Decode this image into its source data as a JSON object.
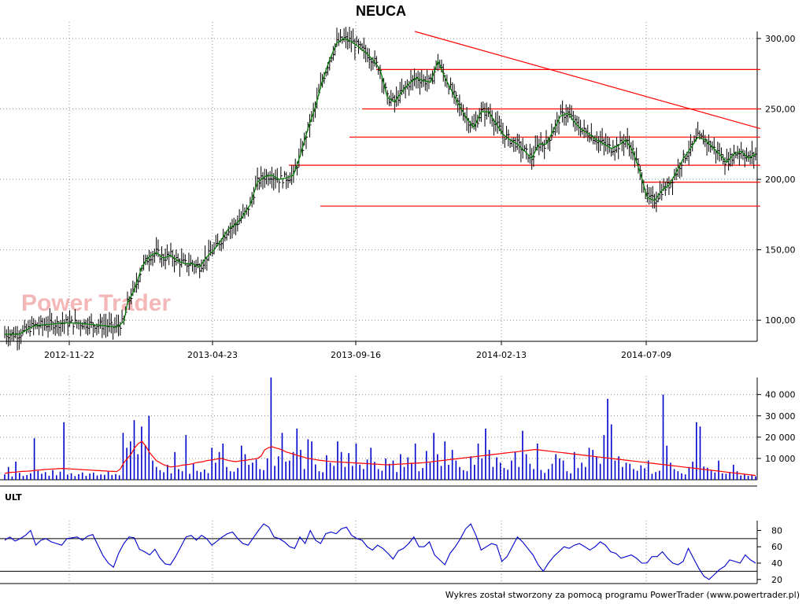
{
  "title": "NEUCA",
  "watermark": "Power Trader",
  "footer": "Wykres został stworzony za pomocą programu PowerTrader (www.powertrader.pl)",
  "indicator_label": "ULT",
  "colors": {
    "price_bar": "#000000",
    "price_line": "#008000",
    "trendlines": "#ff0000",
    "volume_bars": "#0000cc",
    "volume_ma": "#ff0000",
    "ult_line": "#0000cc",
    "grid": "#888888"
  },
  "chart_data": [
    {
      "type": "ohlc",
      "title": "NEUCA",
      "x": [
        "2012-11-22",
        "2013-04-23",
        "2013-09-16",
        "2014-02-13",
        "2014-07-09"
      ],
      "ylim": [
        85,
        305
      ],
      "y_ticks": [
        "100,00",
        "150,00",
        "200,00",
        "250,00",
        "300,00"
      ],
      "grid": true,
      "series": [
        {
          "values": [
            [
              0,
              90
            ],
            [
              4,
              90
            ],
            [
              8,
              96
            ],
            [
              12,
              97
            ],
            [
              16,
              98
            ],
            [
              20,
              98
            ],
            [
              24,
              97
            ],
            [
              28,
              96
            ],
            [
              31,
              95
            ],
            [
              33,
              99
            ],
            [
              34,
              112
            ],
            [
              36,
              122
            ],
            [
              38,
              138
            ],
            [
              40,
              145
            ],
            [
              42,
              148
            ],
            [
              44,
              144
            ],
            [
              46,
              146
            ],
            [
              48,
              142
            ],
            [
              50,
              140
            ],
            [
              52,
              140
            ],
            [
              54,
              138
            ],
            [
              56,
              145
            ],
            [
              58,
              150
            ],
            [
              60,
              157
            ],
            [
              62,
              165
            ],
            [
              64,
              168
            ],
            [
              66,
              174
            ],
            [
              68,
              182
            ],
            [
              70,
              198
            ],
            [
              72,
              202
            ],
            [
              74,
              203
            ],
            [
              76,
              200
            ],
            [
              78,
              201
            ],
            [
              80,
              203
            ],
            [
              82,
              218
            ],
            [
              84,
              236
            ],
            [
              86,
              251
            ],
            [
              88,
              270
            ],
            [
              90,
              285
            ],
            [
              92,
              297
            ],
            [
              94,
              300
            ],
            [
              96,
              298
            ],
            [
              98,
              294
            ],
            [
              100,
              290
            ],
            [
              102,
              285
            ],
            [
              104,
              278
            ],
            [
              106,
              258
            ],
            [
              108,
              255
            ],
            [
              110,
              262
            ],
            [
              112,
              268
            ],
            [
              114,
              272
            ],
            [
              116,
              270
            ],
            [
              118,
              269
            ],
            [
              120,
              284
            ],
            [
              122,
              272
            ],
            [
              124,
              262
            ],
            [
              126,
              252
            ],
            [
              128,
              243
            ],
            [
              130,
              237
            ],
            [
              132,
              248
            ],
            [
              134,
              248
            ],
            [
              136,
              240
            ],
            [
              138,
              232
            ],
            [
              140,
              228
            ],
            [
              142,
              225
            ],
            [
              144,
              220
            ],
            [
              146,
              215
            ],
            [
              148,
              225
            ],
            [
              150,
              225
            ],
            [
              152,
              235
            ],
            [
              154,
              245
            ],
            [
              156,
              247
            ],
            [
              158,
              240
            ],
            [
              160,
              235
            ],
            [
              162,
              232
            ],
            [
              164,
              228
            ],
            [
              166,
              225
            ],
            [
              168,
              222
            ],
            [
              170,
              224
            ],
            [
              172,
              228
            ],
            [
              174,
              220
            ],
            [
              176,
              205
            ],
            [
              178,
              187
            ],
            [
              180,
              185
            ],
            [
              182,
              192
            ],
            [
              184,
              196
            ],
            [
              186,
              205
            ],
            [
              188,
              215
            ],
            [
              190,
              222
            ],
            [
              192,
              230
            ],
            [
              194,
              228
            ],
            [
              196,
              223
            ],
            [
              198,
              218
            ],
            [
              200,
              212
            ],
            [
              202,
              218
            ],
            [
              204,
              220
            ],
            [
              206,
              215
            ],
            [
              208,
              218
            ]
          ]
        }
      ],
      "trendline_levels": [
        278,
        250,
        230,
        210,
        198,
        181
      ],
      "trendline_diagonal": [
        [
          93,
          305
        ],
        [
          208,
          236
        ]
      ]
    },
    {
      "type": "bar",
      "title": "",
      "ylim": [
        0,
        48000
      ],
      "y_ticks": [
        "10 000",
        "20 000",
        "30 000",
        "40 000"
      ],
      "volume_values": [
        2500,
        6000,
        1500,
        8500,
        3200,
        1800,
        2200,
        3000,
        19500,
        4200,
        2800,
        3600,
        1900,
        4500,
        2100,
        3800,
        27000,
        2400,
        3000,
        1700,
        2600,
        3400,
        1800,
        2900,
        3300,
        2000,
        2500,
        2300,
        4100,
        2200,
        2700,
        2100,
        22000,
        15000,
        18000,
        28000,
        12000,
        25000,
        16000,
        30000,
        9000,
        6000,
        4500,
        3500,
        7000,
        3000,
        13000,
        5000,
        4000,
        21000,
        2800,
        7500,
        4200,
        3600,
        4800,
        3100,
        15000,
        8000,
        13000,
        17000,
        6000,
        4000,
        3800,
        5500,
        16000,
        12000,
        7000,
        8000,
        9500,
        5000,
        4500,
        10000,
        48000,
        6500,
        11000,
        22000,
        8500,
        9000,
        13000,
        24000,
        14000,
        5000,
        19000,
        18000,
        7200,
        4000,
        3500,
        11500,
        8000,
        6500,
        18000,
        13000,
        6000,
        12500,
        6500,
        17000,
        7000,
        5000,
        9500,
        15000,
        8400,
        5000,
        4200,
        10000,
        7500,
        9000,
        3600,
        12000,
        6000,
        10500,
        8000,
        17000,
        4000,
        5500,
        13500,
        8000,
        22000,
        12000,
        6500,
        18000,
        7000,
        14000,
        9000,
        6000,
        4500,
        4000,
        11000,
        7000,
        17000,
        10000,
        24000,
        14000,
        6000,
        10500,
        8000,
        5500,
        4700,
        9000,
        13000,
        6000,
        23000,
        12000,
        7500,
        5000,
        17000,
        4600,
        3200,
        5000,
        7500,
        12000,
        10000,
        9000,
        4000,
        3000,
        13000,
        5500,
        8000,
        6000,
        15000,
        14000,
        11000,
        7500,
        21000,
        38000,
        26000,
        9000,
        11000,
        6000,
        8000,
        7500,
        5000,
        4200,
        6800,
        5400,
        9000,
        2800,
        3600,
        4200,
        40000,
        16000,
        8000,
        5000,
        4000,
        3000,
        2500,
        6000,
        8500,
        27000,
        25000,
        6200,
        5600,
        4200,
        3400,
        9000,
        3000,
        2800,
        3600,
        7000,
        4000,
        2000,
        2400,
        1800,
        2200,
        1600
      ],
      "volume_ma_values": [
        3000,
        3300,
        3500,
        3600,
        3800,
        3900,
        4000,
        4100,
        4300,
        4500,
        4600,
        4800,
        4900,
        5000,
        5100,
        5200,
        5300,
        5200,
        5100,
        5000,
        4900,
        4800,
        4700,
        4600,
        4500,
        4400,
        4300,
        4200,
        4100,
        4000,
        3900,
        3800,
        5000,
        8000,
        10000,
        12000,
        15000,
        17000,
        18000,
        16000,
        13000,
        11000,
        9000,
        8000,
        7000,
        6500,
        6000,
        6200,
        6400,
        6800,
        7000,
        7200,
        7500,
        8000,
        8300,
        8500,
        9000,
        9200,
        9500,
        9800,
        10000,
        9500,
        9000,
        8700,
        8500,
        8800,
        9000,
        9200,
        9500,
        9700,
        10000,
        11000,
        14000,
        15000,
        15500,
        15000,
        14500,
        13800,
        13000,
        12500,
        12000,
        11500,
        11000,
        10500,
        10000,
        9800,
        9500,
        9200,
        9000,
        8800,
        8600,
        8500,
        8400,
        8300,
        8200,
        8100,
        8000,
        7900,
        7800,
        7700,
        7600,
        7500,
        7400,
        7300,
        7200,
        7100,
        7000,
        7100,
        7200,
        7300,
        7400,
        7500,
        7600,
        7700,
        7800,
        7900,
        8000,
        8200,
        8400,
        8600,
        8800,
        9000,
        9200,
        9400,
        9600,
        9800,
        10000,
        10200,
        10400,
        10600,
        10800,
        11000,
        11200,
        11400,
        11600,
        11800,
        12000,
        12200,
        12400,
        12600,
        12800,
        13000,
        13200,
        13400,
        13600,
        13800,
        14000,
        14200,
        14000,
        13800,
        13600,
        13400,
        13200,
        13000,
        12800,
        12600,
        12400,
        12200,
        12000,
        11800,
        11600,
        11400,
        11200,
        11000,
        10800,
        10600,
        10400,
        10200,
        10000,
        9800,
        9600,
        9400,
        9200,
        9000,
        8800,
        8600,
        8400,
        8200,
        8000,
        7800,
        7600,
        7400,
        7200,
        7000,
        6800,
        6600,
        6400,
        6200,
        6000,
        5800,
        5600,
        5400,
        5200,
        5000,
        4800,
        4600,
        4400,
        4200,
        4000,
        3800,
        3600,
        3400,
        3200,
        3000,
        2800,
        2600,
        2400,
        2200,
        2000
      ]
    },
    {
      "type": "line",
      "title": "ULT",
      "ylim": [
        15,
        92
      ],
      "y_ticks": [
        "20",
        "40",
        "60",
        "80"
      ],
      "reference_lines": [
        70,
        30
      ],
      "series": [
        {
          "values": [
            68,
            72,
            67,
            70,
            74,
            80,
            62,
            68,
            70,
            66,
            64,
            62,
            70,
            71,
            72,
            68,
            73,
            75,
            62,
            49,
            40,
            35,
            52,
            64,
            72,
            71,
            57,
            54,
            50,
            57,
            46,
            39,
            38,
            48,
            60,
            72,
            74,
            68,
            74,
            70,
            62,
            67,
            72,
            76,
            78,
            70,
            64,
            62,
            71,
            80,
            88,
            84,
            72,
            70,
            66,
            60,
            58,
            72,
            64,
            80,
            68,
            64,
            76,
            78,
            76,
            82,
            84,
            74,
            70,
            68,
            60,
            56,
            62,
            58,
            52,
            45,
            55,
            58,
            64,
            72,
            60,
            60,
            66,
            50,
            44,
            38,
            52,
            60,
            70,
            82,
            88,
            74,
            56,
            60,
            64,
            62,
            42,
            48,
            60,
            72,
            66,
            58,
            50,
            38,
            30,
            40,
            48,
            54,
            60,
            58,
            62,
            64,
            60,
            56,
            60,
            66,
            62,
            54,
            52,
            46,
            48,
            50,
            46,
            40,
            40,
            48,
            48,
            54,
            46,
            40,
            38,
            42,
            58,
            46,
            34,
            24,
            20,
            26,
            32,
            36,
            44,
            42,
            40,
            50,
            44,
            40
          ]
        }
      ]
    }
  ]
}
